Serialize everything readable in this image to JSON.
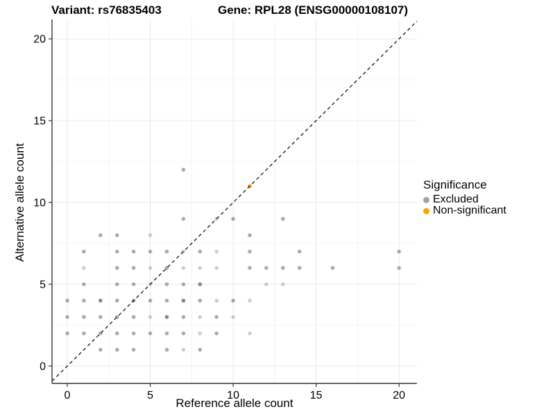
{
  "title": {
    "variant": "Variant: rs76835403",
    "gene": "Gene: RPL28 (ENSG00000108107)"
  },
  "chart_data": {
    "type": "scatter",
    "xlabel": "Reference allele count",
    "ylabel": "Alternative allele count",
    "xlim": [
      -0.92,
      21.08
    ],
    "ylim": [
      -1.06,
      21.19
    ],
    "x_ticks": [
      0,
      5,
      10,
      15,
      20
    ],
    "y_ticks": [
      0,
      5,
      10,
      15,
      20
    ],
    "x_minor_ticks": [
      2.5,
      7.5,
      12.5,
      17.5
    ],
    "y_minor_ticks": [
      2.5,
      7.5,
      12.5,
      17.5
    ],
    "grid": "on",
    "identity_line": {
      "style": "dashed",
      "color": "#000000",
      "slope": 1,
      "intercept": 0
    },
    "colors": {
      "excluded_base": "#666666",
      "non_significant": "#FFA500",
      "major_grid": "#E8E8E8",
      "minor_grid": "#F4F4F4",
      "axis": "#333333"
    },
    "alpha_levels": {
      "1": 0.32,
      "2": 0.55,
      "3": 0.78
    },
    "series": [
      {
        "name": "Excluded",
        "points": [
          [
            7,
            12,
            2
          ],
          [
            7,
            9,
            2
          ],
          [
            9,
            9,
            1
          ],
          [
            10,
            9,
            2
          ],
          [
            13,
            9,
            2
          ],
          [
            2,
            8,
            2
          ],
          [
            3,
            8,
            2
          ],
          [
            5,
            8,
            1
          ],
          [
            11,
            8,
            2
          ],
          [
            1,
            7,
            2
          ],
          [
            3,
            7,
            2
          ],
          [
            4,
            7,
            2
          ],
          [
            5,
            7,
            2
          ],
          [
            6,
            7,
            2
          ],
          [
            7,
            7,
            1
          ],
          [
            8,
            7,
            2
          ],
          [
            9,
            7,
            1
          ],
          [
            11,
            7,
            2
          ],
          [
            14,
            7,
            2
          ],
          [
            20,
            7,
            2
          ],
          [
            1,
            6,
            1
          ],
          [
            3,
            6,
            2
          ],
          [
            4,
            6,
            2
          ],
          [
            5,
            6,
            1
          ],
          [
            6,
            6,
            2
          ],
          [
            7,
            6,
            1
          ],
          [
            8,
            6,
            1
          ],
          [
            9,
            6,
            1
          ],
          [
            11,
            6,
            2
          ],
          [
            12,
            6,
            2
          ],
          [
            13,
            6,
            2
          ],
          [
            14,
            6,
            2
          ],
          [
            16,
            6,
            2
          ],
          [
            20,
            6,
            2
          ],
          [
            1,
            5,
            2
          ],
          [
            3,
            5,
            2
          ],
          [
            4,
            5,
            2
          ],
          [
            5,
            5,
            1
          ],
          [
            6,
            5,
            2
          ],
          [
            7,
            5,
            2
          ],
          [
            8,
            5,
            3
          ],
          [
            12,
            5,
            1
          ],
          [
            13,
            5,
            1
          ],
          [
            0,
            4,
            2
          ],
          [
            1,
            4,
            2
          ],
          [
            2,
            4,
            3
          ],
          [
            3,
            4,
            2
          ],
          [
            4,
            4,
            2
          ],
          [
            5,
            4,
            2
          ],
          [
            6,
            4,
            2
          ],
          [
            7,
            4,
            3
          ],
          [
            8,
            4,
            2
          ],
          [
            9,
            4,
            1
          ],
          [
            10,
            4,
            2
          ],
          [
            11,
            4,
            1
          ],
          [
            0,
            3,
            2
          ],
          [
            1,
            3,
            2
          ],
          [
            2,
            3,
            2
          ],
          [
            3,
            3,
            2
          ],
          [
            4,
            3,
            2
          ],
          [
            5,
            3,
            1
          ],
          [
            6,
            3,
            3
          ],
          [
            7,
            3,
            2
          ],
          [
            8,
            3,
            1
          ],
          [
            9,
            3,
            2
          ],
          [
            10,
            3,
            1
          ],
          [
            0,
            2,
            2
          ],
          [
            1,
            2,
            2
          ],
          [
            2,
            2,
            2
          ],
          [
            3,
            2,
            2
          ],
          [
            4,
            2,
            2
          ],
          [
            5,
            2,
            2
          ],
          [
            6,
            2,
            2
          ],
          [
            7,
            2,
            2
          ],
          [
            8,
            2,
            1
          ],
          [
            9,
            2,
            2
          ],
          [
            11,
            2,
            1
          ],
          [
            2,
            1,
            2
          ],
          [
            3,
            1,
            2
          ],
          [
            4,
            1,
            2
          ],
          [
            6,
            1,
            2
          ],
          [
            7,
            1,
            1
          ],
          [
            8,
            1,
            2
          ]
        ]
      },
      {
        "name": "Non-significant",
        "points": [
          [
            11,
            11,
            2
          ]
        ]
      }
    ],
    "legend": {
      "title": "Significance",
      "position": "right",
      "entries": [
        {
          "label": "Excluded",
          "color": "#A3A3A3"
        },
        {
          "label": "Non-significant",
          "color": "#FFA500"
        }
      ]
    }
  }
}
